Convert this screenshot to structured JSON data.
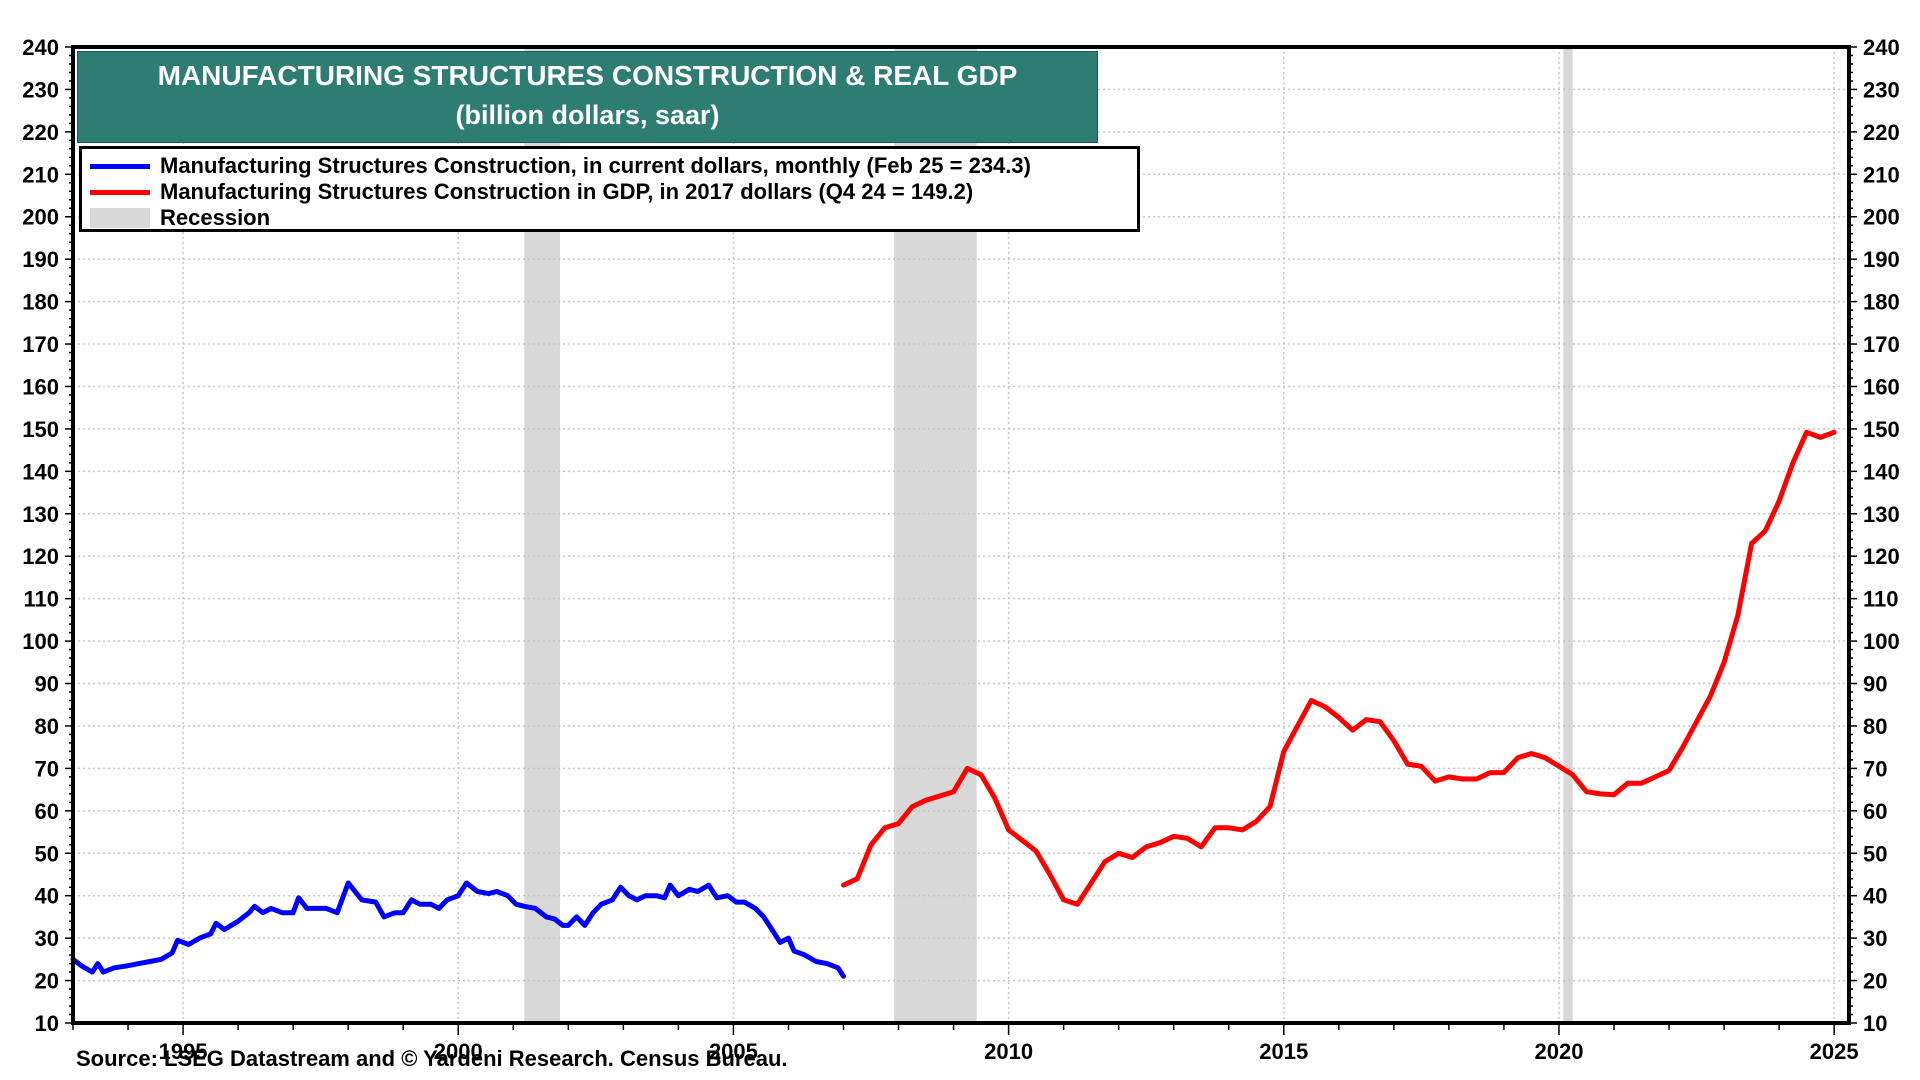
{
  "chart_data": {
    "type": "line",
    "title": "MANUFACTURING STRUCTURES CONSTRUCTION & REAL GDP",
    "subtitle": "(billion dollars, saar)",
    "xlabel": "",
    "ylabel": "",
    "xlim": [
      1993.0,
      2025.27
    ],
    "ylim": [
      10,
      240
    ],
    "y_ticks": [
      10,
      20,
      30,
      40,
      50,
      60,
      70,
      80,
      90,
      100,
      110,
      120,
      130,
      140,
      150,
      160,
      170,
      180,
      190,
      200,
      210,
      220,
      230,
      240
    ],
    "x_ticks": [
      1995,
      2000,
      2005,
      2010,
      2015,
      2020,
      2025
    ],
    "grid": true,
    "legend_position": "top-left",
    "source": "Source: LSEG Datastream and © Yardeni Research. Census Bureau.",
    "recessions": [
      {
        "start": 2001.2,
        "end": 2001.85
      },
      {
        "start": 2007.92,
        "end": 2009.42
      },
      {
        "start": 2020.08,
        "end": 2020.25
      }
    ],
    "series": [
      {
        "name": "Manufacturing Structures Construction, in current dollars, monthly  (Feb 25 = 234.3)",
        "color": "#0000ff",
        "points": [
          [
            1993.0,
            25
          ],
          [
            1993.15,
            23.5
          ],
          [
            1993.35,
            22
          ],
          [
            1993.45,
            24
          ],
          [
            1993.55,
            22
          ],
          [
            1993.75,
            23
          ],
          [
            1994.0,
            23.5
          ],
          [
            1994.2,
            24
          ],
          [
            1994.4,
            24.5
          ],
          [
            1994.6,
            25
          ],
          [
            1994.8,
            26.5
          ],
          [
            1994.9,
            29.5
          ],
          [
            1995.1,
            28.5
          ],
          [
            1995.3,
            30
          ],
          [
            1995.5,
            31
          ],
          [
            1995.6,
            33.5
          ],
          [
            1995.75,
            32
          ],
          [
            1996.0,
            34
          ],
          [
            1996.2,
            36
          ],
          [
            1996.3,
            37.5
          ],
          [
            1996.45,
            36
          ],
          [
            1996.6,
            37
          ],
          [
            1996.8,
            36
          ],
          [
            1997.0,
            36
          ],
          [
            1997.1,
            39.5
          ],
          [
            1997.25,
            37
          ],
          [
            1997.6,
            37
          ],
          [
            1997.8,
            36
          ],
          [
            1998.0,
            43
          ],
          [
            1998.25,
            39
          ],
          [
            1998.5,
            38.5
          ],
          [
            1998.65,
            35
          ],
          [
            1998.85,
            36
          ],
          [
            1999.0,
            36
          ],
          [
            1999.15,
            39
          ],
          [
            1999.3,
            38
          ],
          [
            1999.5,
            38
          ],
          [
            1999.65,
            37
          ],
          [
            1999.8,
            39
          ],
          [
            2000.0,
            40
          ],
          [
            2000.15,
            43
          ],
          [
            2000.35,
            41
          ],
          [
            2000.55,
            40.5
          ],
          [
            2000.7,
            41
          ],
          [
            2000.9,
            40
          ],
          [
            2001.05,
            38
          ],
          [
            2001.2,
            37.5
          ],
          [
            2001.4,
            37
          ],
          [
            2001.6,
            35
          ],
          [
            2001.75,
            34.5
          ],
          [
            2001.9,
            33
          ],
          [
            2002.0,
            33
          ],
          [
            2002.15,
            35
          ],
          [
            2002.3,
            33
          ],
          [
            2002.45,
            36
          ],
          [
            2002.6,
            38
          ],
          [
            2002.8,
            39
          ],
          [
            2002.95,
            42
          ],
          [
            2003.1,
            40
          ],
          [
            2003.25,
            39
          ],
          [
            2003.4,
            40
          ],
          [
            2003.6,
            40
          ],
          [
            2003.75,
            39.5
          ],
          [
            2003.85,
            42.5
          ],
          [
            2004.0,
            40
          ],
          [
            2004.2,
            41.5
          ],
          [
            2004.35,
            41
          ],
          [
            2004.55,
            42.5
          ],
          [
            2004.7,
            39.5
          ],
          [
            2004.9,
            40
          ],
          [
            2005.05,
            38.5
          ],
          [
            2005.2,
            38.5
          ],
          [
            2005.4,
            37
          ],
          [
            2005.55,
            35
          ],
          [
            2005.7,
            32
          ],
          [
            2005.85,
            29
          ],
          [
            2006.0,
            30
          ],
          [
            2006.1,
            27
          ],
          [
            2006.3,
            26
          ],
          [
            2006.5,
            24.5
          ],
          [
            2006.7,
            24
          ],
          [
            2006.9,
            23
          ],
          [
            2007.0,
            21
          ]
        ]
      },
      {
        "name": "Manufacturing Structures Construction in GDP, in 2017 dollars (Q4 24 = 149.2)",
        "color": "#ff0000",
        "points": [
          [
            2007.0,
            42.5
          ],
          [
            2007.25,
            44
          ],
          [
            2007.5,
            52
          ],
          [
            2007.75,
            56
          ],
          [
            2008.0,
            57
          ],
          [
            2008.25,
            61
          ],
          [
            2008.5,
            62.5
          ],
          [
            2008.75,
            63.5
          ],
          [
            2009.0,
            64.5
          ],
          [
            2009.25,
            70
          ],
          [
            2009.5,
            68.5
          ],
          [
            2009.75,
            63
          ],
          [
            2010.0,
            55.5
          ],
          [
            2010.25,
            53
          ],
          [
            2010.5,
            50.5
          ],
          [
            2010.75,
            45
          ],
          [
            2011.0,
            39
          ],
          [
            2011.25,
            38
          ],
          [
            2011.5,
            43
          ],
          [
            2011.75,
            48
          ],
          [
            2012.0,
            50
          ],
          [
            2012.25,
            49
          ],
          [
            2012.5,
            51.5
          ],
          [
            2012.75,
            52.5
          ],
          [
            2013.0,
            54
          ],
          [
            2013.25,
            53.5
          ],
          [
            2013.5,
            51.5
          ],
          [
            2013.75,
            56
          ],
          [
            2014.0,
            56
          ],
          [
            2014.25,
            55.5
          ],
          [
            2014.5,
            57.5
          ],
          [
            2014.75,
            61
          ],
          [
            2015.0,
            74
          ],
          [
            2015.25,
            80
          ],
          [
            2015.5,
            86
          ],
          [
            2015.75,
            84.5
          ],
          [
            2016.0,
            82
          ],
          [
            2016.25,
            79
          ],
          [
            2016.5,
            81.5
          ],
          [
            2016.75,
            81
          ],
          [
            2017.0,
            76.5
          ],
          [
            2017.25,
            71
          ],
          [
            2017.5,
            70.5
          ],
          [
            2017.75,
            67
          ],
          [
            2018.0,
            68
          ],
          [
            2018.25,
            67.5
          ],
          [
            2018.5,
            67.5
          ],
          [
            2018.75,
            69
          ],
          [
            2019.0,
            69
          ],
          [
            2019.25,
            72.5
          ],
          [
            2019.5,
            73.5
          ],
          [
            2019.75,
            72.5
          ],
          [
            2020.0,
            70.5
          ],
          [
            2020.25,
            68.5
          ],
          [
            2020.5,
            64.5
          ],
          [
            2020.75,
            64
          ],
          [
            2021.0,
            63.8
          ],
          [
            2021.25,
            66.5
          ],
          [
            2021.5,
            66.5
          ],
          [
            2021.75,
            68
          ],
          [
            2022.0,
            69.5
          ],
          [
            2022.25,
            75
          ],
          [
            2022.5,
            81
          ],
          [
            2022.75,
            87
          ],
          [
            2023.0,
            95
          ],
          [
            2023.25,
            106
          ],
          [
            2023.5,
            123
          ],
          [
            2023.75,
            126
          ],
          [
            2024.0,
            133
          ],
          [
            2024.25,
            142
          ],
          [
            2024.5,
            149.2
          ],
          [
            2024.75,
            148
          ],
          [
            2025.0,
            149.2
          ]
        ]
      }
    ]
  },
  "legend": {
    "items": [
      {
        "label": "Manufacturing Structures Construction, in current dollars, monthly  (Feb 25 = 234.3)",
        "color": "#0000ff",
        "kind": "line"
      },
      {
        "label": "Manufacturing Structures Construction in GDP, in 2017 dollars (Q4 24 = 149.2)",
        "color": "#ff0000",
        "kind": "line"
      },
      {
        "label": "Recession",
        "color": "#d8d8d8",
        "kind": "rect"
      }
    ]
  },
  "colors": {
    "title_bg": "#2e7d72",
    "recession": "#d8d8d8",
    "grid": "#c8c8c8"
  }
}
